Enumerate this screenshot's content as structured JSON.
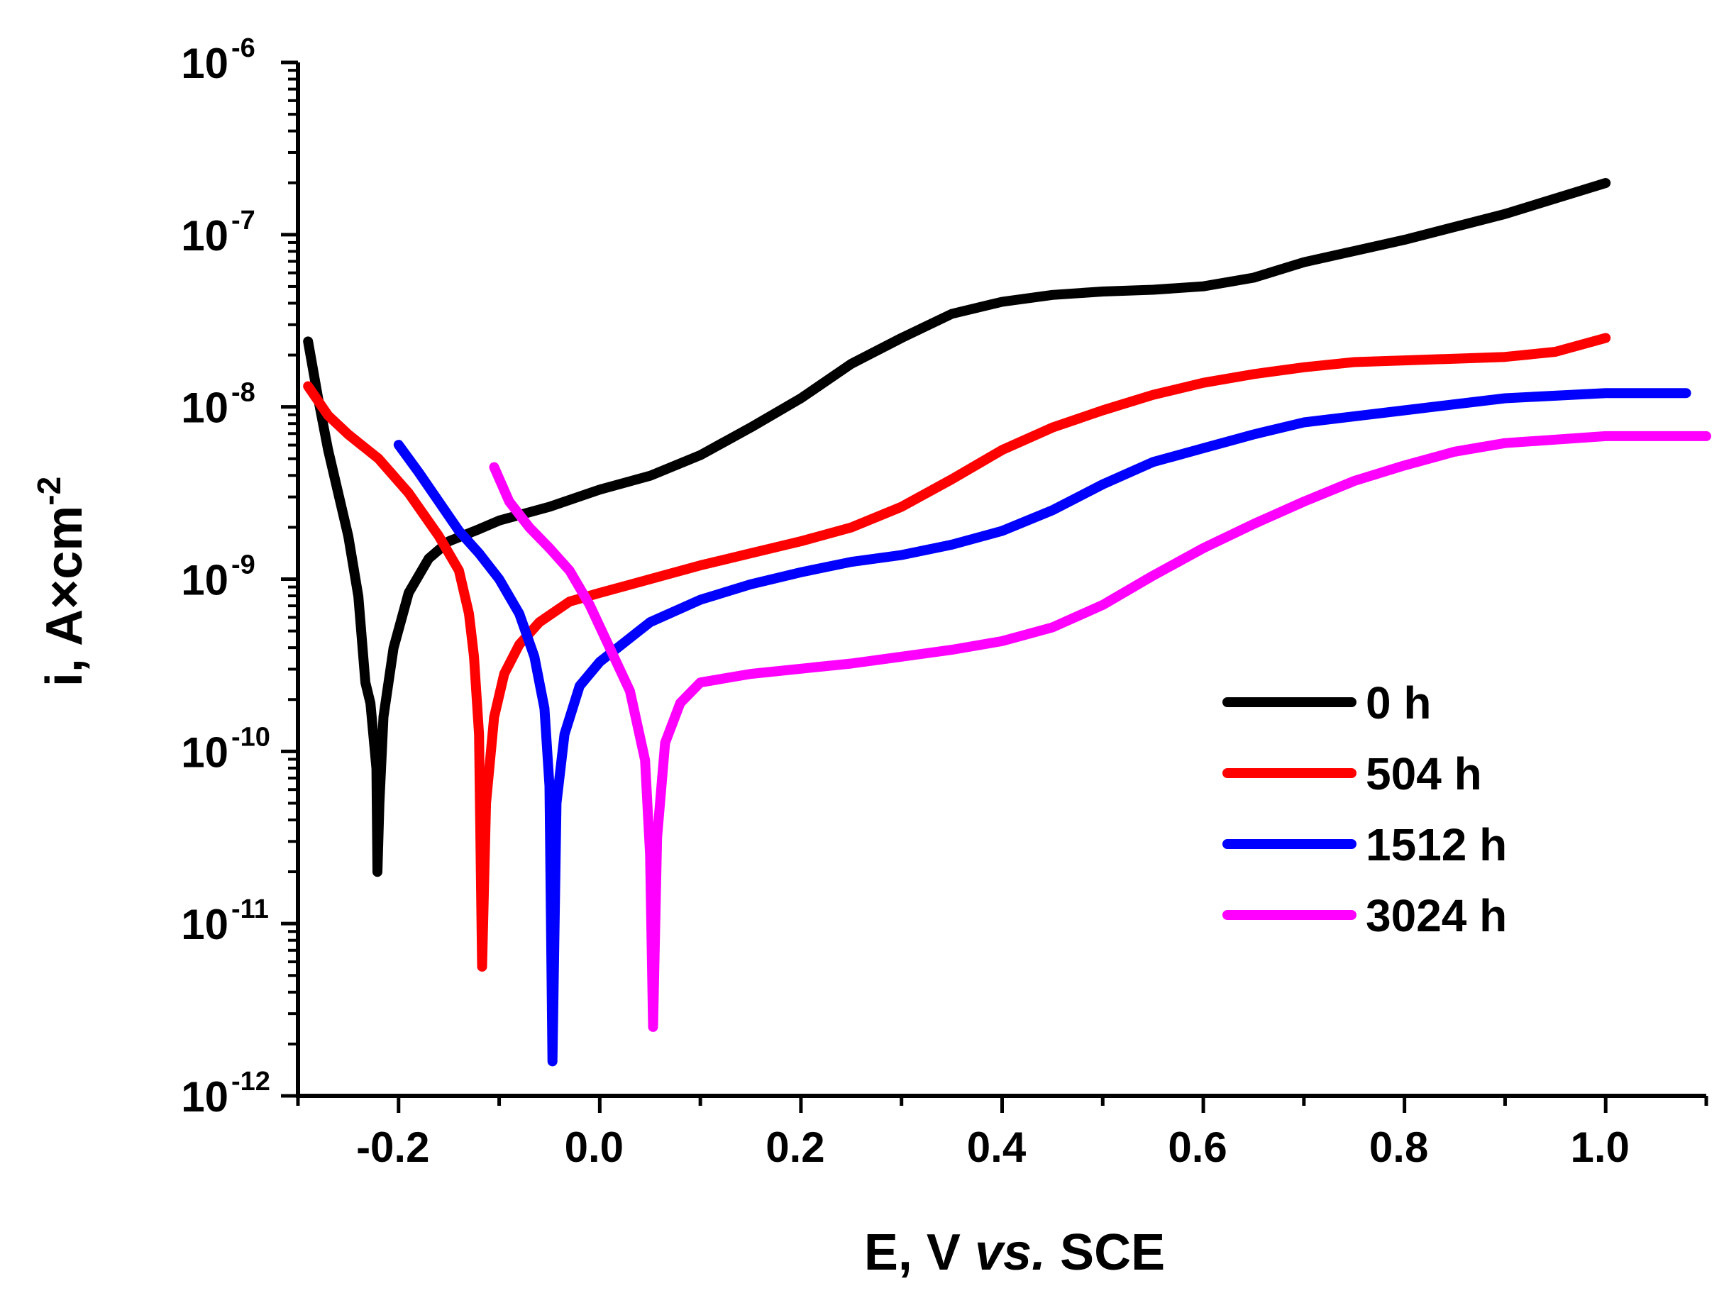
{
  "chart_data": {
    "type": "line",
    "xlabel_parts": [
      "E, V ",
      "vs.",
      " SCE"
    ],
    "ylabel_parts": [
      "i, A×cm",
      "-2"
    ],
    "x_scale": "linear",
    "y_scale": "log",
    "xlim": [
      -0.3,
      1.1
    ],
    "ylim_exp": [
      -12,
      -6
    ],
    "x_ticks": [
      "-0.2",
      "0.0",
      "0.2",
      "0.4",
      "0.6",
      "0.8",
      "1.0"
    ],
    "x_tick_values": [
      -0.2,
      0.0,
      0.2,
      0.4,
      0.6,
      0.8,
      1.0
    ],
    "y_ticks": [
      {
        "base": "10",
        "exp": "-12"
      },
      {
        "base": "10",
        "exp": "-11"
      },
      {
        "base": "10",
        "exp": "-10"
      },
      {
        "base": "10",
        "exp": "-9"
      },
      {
        "base": "10",
        "exp": "-8"
      },
      {
        "base": "10",
        "exp": "-7"
      },
      {
        "base": "10",
        "exp": "-6"
      }
    ],
    "y_tick_exps": [
      -12,
      -11,
      -10,
      -9,
      -8,
      -7,
      -6
    ],
    "grid": false,
    "legend_position": "center-right",
    "series": [
      {
        "name": "0 h",
        "color": "#000000",
        "points": [
          [
            -0.29,
            -7.62
          ],
          [
            -0.28,
            -7.95
          ],
          [
            -0.27,
            -8.25
          ],
          [
            -0.26,
            -8.5
          ],
          [
            -0.25,
            -8.75
          ],
          [
            -0.24,
            -9.1
          ],
          [
            -0.233,
            -9.6
          ],
          [
            -0.228,
            -9.72
          ],
          [
            -0.222,
            -10.1
          ],
          [
            -0.221,
            -10.7
          ],
          [
            -0.219,
            -10.3
          ],
          [
            -0.215,
            -9.8
          ],
          [
            -0.205,
            -9.4
          ],
          [
            -0.19,
            -9.08
          ],
          [
            -0.17,
            -8.88
          ],
          [
            -0.15,
            -8.78
          ],
          [
            -0.12,
            -8.71
          ],
          [
            -0.1,
            -8.66
          ],
          [
            -0.05,
            -8.58
          ],
          [
            0.0,
            -8.48
          ],
          [
            0.05,
            -8.4
          ],
          [
            0.1,
            -8.28
          ],
          [
            0.15,
            -8.12
          ],
          [
            0.2,
            -7.95
          ],
          [
            0.25,
            -7.75
          ],
          [
            0.3,
            -7.6
          ],
          [
            0.35,
            -7.46
          ],
          [
            0.4,
            -7.39
          ],
          [
            0.45,
            -7.35
          ],
          [
            0.5,
            -7.33
          ],
          [
            0.55,
            -7.32
          ],
          [
            0.6,
            -7.3
          ],
          [
            0.65,
            -7.25
          ],
          [
            0.7,
            -7.16
          ],
          [
            0.8,
            -7.03
          ],
          [
            0.9,
            -6.88
          ],
          [
            1.0,
            -6.7
          ]
        ]
      },
      {
        "name": "504 h",
        "color": "#ff0000",
        "points": [
          [
            -0.29,
            -7.88
          ],
          [
            -0.27,
            -8.05
          ],
          [
            -0.25,
            -8.16
          ],
          [
            -0.22,
            -8.3
          ],
          [
            -0.19,
            -8.5
          ],
          [
            -0.16,
            -8.75
          ],
          [
            -0.14,
            -8.95
          ],
          [
            -0.13,
            -9.2
          ],
          [
            -0.125,
            -9.45
          ],
          [
            -0.12,
            -9.9
          ],
          [
            -0.117,
            -11.25
          ],
          [
            -0.113,
            -10.3
          ],
          [
            -0.105,
            -9.8
          ],
          [
            -0.095,
            -9.55
          ],
          [
            -0.08,
            -9.38
          ],
          [
            -0.06,
            -9.25
          ],
          [
            -0.03,
            -9.13
          ],
          [
            0.0,
            -9.08
          ],
          [
            0.05,
            -9.0
          ],
          [
            0.1,
            -8.92
          ],
          [
            0.15,
            -8.85
          ],
          [
            0.2,
            -8.78
          ],
          [
            0.25,
            -8.7
          ],
          [
            0.3,
            -8.58
          ],
          [
            0.35,
            -8.42
          ],
          [
            0.4,
            -8.25
          ],
          [
            0.45,
            -8.12
          ],
          [
            0.5,
            -8.02
          ],
          [
            0.55,
            -7.93
          ],
          [
            0.6,
            -7.86
          ],
          [
            0.65,
            -7.81
          ],
          [
            0.7,
            -7.77
          ],
          [
            0.75,
            -7.74
          ],
          [
            0.8,
            -7.73
          ],
          [
            0.85,
            -7.72
          ],
          [
            0.9,
            -7.71
          ],
          [
            0.95,
            -7.68
          ],
          [
            1.0,
            -7.6
          ]
        ]
      },
      {
        "name": "1512 h",
        "color": "#0000ff",
        "points": [
          [
            -0.2,
            -8.22
          ],
          [
            -0.18,
            -8.38
          ],
          [
            -0.16,
            -8.55
          ],
          [
            -0.14,
            -8.72
          ],
          [
            -0.12,
            -8.85
          ],
          [
            -0.1,
            -9.0
          ],
          [
            -0.08,
            -9.2
          ],
          [
            -0.065,
            -9.45
          ],
          [
            -0.055,
            -9.75
          ],
          [
            -0.05,
            -10.2
          ],
          [
            -0.047,
            -11.8
          ],
          [
            -0.043,
            -10.3
          ],
          [
            -0.035,
            -9.9
          ],
          [
            -0.02,
            -9.62
          ],
          [
            0.0,
            -9.48
          ],
          [
            0.05,
            -9.25
          ],
          [
            0.1,
            -9.12
          ],
          [
            0.15,
            -9.03
          ],
          [
            0.2,
            -8.96
          ],
          [
            0.25,
            -8.9
          ],
          [
            0.3,
            -8.86
          ],
          [
            0.35,
            -8.8
          ],
          [
            0.4,
            -8.72
          ],
          [
            0.45,
            -8.6
          ],
          [
            0.5,
            -8.45
          ],
          [
            0.55,
            -8.32
          ],
          [
            0.6,
            -8.24
          ],
          [
            0.65,
            -8.16
          ],
          [
            0.7,
            -8.09
          ],
          [
            0.8,
            -8.02
          ],
          [
            0.9,
            -7.95
          ],
          [
            1.0,
            -7.92
          ],
          [
            1.08,
            -7.92
          ]
        ]
      },
      {
        "name": "3024 h",
        "color": "#ff00ff",
        "points": [
          [
            -0.105,
            -8.35
          ],
          [
            -0.09,
            -8.55
          ],
          [
            -0.07,
            -8.7
          ],
          [
            -0.05,
            -8.82
          ],
          [
            -0.03,
            -8.95
          ],
          [
            -0.01,
            -9.15
          ],
          [
            0.01,
            -9.4
          ],
          [
            0.03,
            -9.65
          ],
          [
            0.045,
            -10.05
          ],
          [
            0.05,
            -10.6
          ],
          [
            0.053,
            -11.6
          ],
          [
            0.057,
            -10.5
          ],
          [
            0.065,
            -9.95
          ],
          [
            0.08,
            -9.72
          ],
          [
            0.1,
            -9.6
          ],
          [
            0.15,
            -9.55
          ],
          [
            0.2,
            -9.52
          ],
          [
            0.25,
            -9.49
          ],
          [
            0.3,
            -9.45
          ],
          [
            0.35,
            -9.41
          ],
          [
            0.4,
            -9.36
          ],
          [
            0.45,
            -9.28
          ],
          [
            0.5,
            -9.15
          ],
          [
            0.55,
            -8.98
          ],
          [
            0.6,
            -8.82
          ],
          [
            0.65,
            -8.68
          ],
          [
            0.7,
            -8.55
          ],
          [
            0.75,
            -8.43
          ],
          [
            0.8,
            -8.34
          ],
          [
            0.85,
            -8.26
          ],
          [
            0.9,
            -8.21
          ],
          [
            0.95,
            -8.19
          ],
          [
            1.0,
            -8.17
          ],
          [
            1.1,
            -8.17
          ]
        ]
      }
    ]
  }
}
